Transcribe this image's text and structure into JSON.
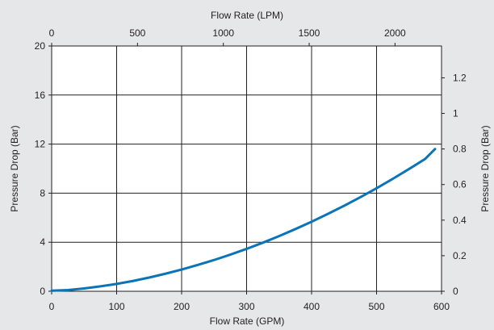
{
  "chart_data": {
    "type": "line",
    "xlabel_bottom": "Flow Rate (GPM)",
    "xlabel_top": "Flow Rate (LPM)",
    "ylabel_left": "Pressure Drop (Bar)",
    "ylabel_right": "Pressure Drop (Bar)",
    "x_bottom_ticks": [
      "0",
      "100",
      "200",
      "300",
      "400",
      "500",
      "600"
    ],
    "x_top_ticks": [
      "0",
      "500",
      "1000",
      "1500",
      "2000"
    ],
    "y_left_ticks": [
      "0",
      "4",
      "8",
      "12",
      "16",
      "20"
    ],
    "y_right_ticks": [
      "0",
      "0.2",
      "0.4",
      "0.6",
      "0.8",
      "1",
      "1.2"
    ],
    "xlim_bottom": [
      0,
      600
    ],
    "xlim_top": [
      0,
      2271
    ],
    "ylim_left": [
      0,
      20
    ],
    "ylim_right": [
      0,
      1.379
    ],
    "grid": true,
    "series": [
      {
        "color": "#0a74b8",
        "x": [
          0,
          25,
          50,
          75,
          100,
          125,
          150,
          175,
          200,
          225,
          250,
          275,
          300,
          325,
          350,
          375,
          400,
          425,
          450,
          475,
          500,
          525,
          550,
          575,
          590
        ],
        "y": [
          0.05,
          0.1,
          0.23,
          0.4,
          0.6,
          0.84,
          1.12,
          1.43,
          1.77,
          2.15,
          2.55,
          2.99,
          3.46,
          3.96,
          4.5,
          5.07,
          5.67,
          6.31,
          6.97,
          7.67,
          8.4,
          9.17,
          9.97,
          10.8,
          11.6
        ]
      }
    ]
  }
}
